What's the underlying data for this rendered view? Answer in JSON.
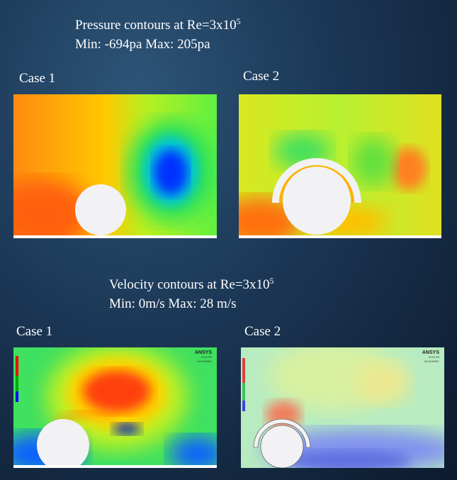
{
  "pressure": {
    "title": "Pressure contours at Re=3x10",
    "exponent": "5",
    "range": "Min: -694pa Max: 205pa",
    "cases": [
      {
        "label": "Case 1"
      },
      {
        "label": "Case 2"
      }
    ]
  },
  "velocity": {
    "title": "Velocity contours at Re=3x10",
    "exponent": "5",
    "range": "Min: 0m/s Max: 28 m/s",
    "cases": [
      {
        "label": "Case 1",
        "logo": "ANSYS",
        "version": "2019 R3",
        "edition": "ACADEMIC"
      },
      {
        "label": "Case 2",
        "logo": "ANSYS",
        "version": "2019 R3",
        "edition": "ACADEMIC"
      }
    ]
  }
}
